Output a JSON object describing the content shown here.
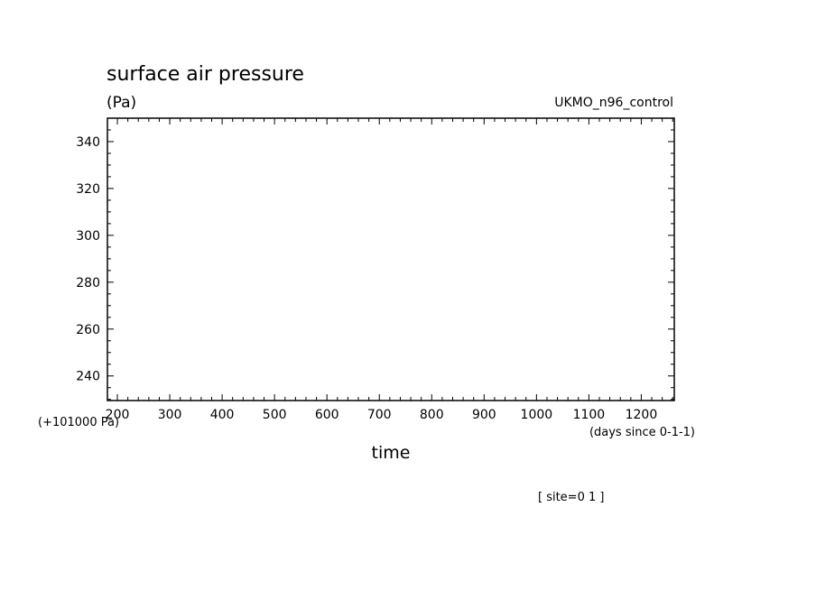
{
  "chart_data": {
    "type": "line",
    "title": "surface air pressure",
    "ylabel": "(Pa)",
    "model_label": "UKMO_n96_control",
    "xlabel": "time",
    "x_units": "(days since 0-1-1)",
    "y_offset_label": "(+101000 Pa)",
    "annotation": "[ site=0 1 ]",
    "xlim": [
      181,
      1263
    ],
    "ylim": [
      229.5,
      350
    ],
    "x_ticks": [
      200,
      300,
      400,
      500,
      600,
      700,
      800,
      900,
      1000,
      1100,
      1200
    ],
    "y_ticks": [
      240,
      260,
      280,
      300,
      320,
      340
    ],
    "grid": false,
    "series": []
  }
}
